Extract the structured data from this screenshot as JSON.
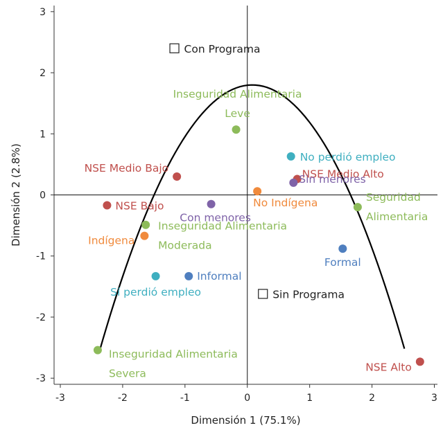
{
  "chart_data": {
    "type": "scatter",
    "xlabel": "Dimensión 1 (75.1%)",
    "ylabel": "Dimensión 2 (2.8%)",
    "xlim": [
      -3.1,
      3.05
    ],
    "ylim": [
      -3.1,
      3.1
    ],
    "xticks": [
      -3,
      -2,
      -1,
      0,
      1,
      2,
      3
    ],
    "yticks": [
      -3,
      -2,
      -1,
      0,
      1,
      2,
      3
    ],
    "xtick_labels": [
      "-3",
      "-2",
      "-1",
      "0",
      "1",
      "2",
      "3"
    ],
    "ytick_labels": [
      "-3",
      "-2",
      "-1",
      "0",
      "1",
      "2",
      "3"
    ],
    "grid": false,
    "reference_lines": {
      "x": 0,
      "y": 0
    },
    "colors": {
      "nse": "#c0504d",
      "food": "#8dbb5a",
      "indigenous": "#f08a3c",
      "employment_loss": "#3fafc0",
      "minors": "#7f63a8",
      "work": "#4f7fbf",
      "program": "#222222",
      "curve": "#000000"
    },
    "points": [
      {
        "group": "nse",
        "x": -2.25,
        "y": -0.17,
        "label": "NSE Bajo",
        "anchor": "start"
      },
      {
        "group": "nse",
        "x": -1.13,
        "y": 0.3,
        "label": "NSE Medio Bajo",
        "anchor": "end"
      },
      {
        "group": "nse",
        "x": 0.8,
        "y": 0.26,
        "label": "NSE Medio Alto",
        "anchor": "start"
      },
      {
        "group": "nse",
        "x": 2.77,
        "y": -2.73,
        "label": "NSE Alto",
        "anchor": "end"
      },
      {
        "group": "food",
        "x": -0.18,
        "y": 1.07,
        "label": "Inseguridad Alimentaria\nLeve",
        "anchor": "middle"
      },
      {
        "group": "food",
        "x": -1.63,
        "y": -0.49,
        "label": "Inseguridad Alimentaria\nModerada",
        "anchor": "start"
      },
      {
        "group": "food",
        "x": -2.4,
        "y": -2.54,
        "label": "Inseguridad Alimentaria\nSevera",
        "anchor": "start"
      },
      {
        "group": "food",
        "x": 1.77,
        "y": -0.2,
        "label": "Seguridad\nAlimentaria",
        "anchor": "start"
      },
      {
        "group": "indigenous",
        "x": -1.65,
        "y": -0.67,
        "label": "Indígena",
        "anchor": "end"
      },
      {
        "group": "indigenous",
        "x": 0.16,
        "y": 0.06,
        "label": "No Indígena",
        "anchor": "start"
      },
      {
        "group": "employment_loss",
        "x": -1.47,
        "y": -1.33,
        "label": "Sí perdió empleo",
        "anchor": "middle"
      },
      {
        "group": "employment_loss",
        "x": 0.7,
        "y": 0.63,
        "label": "No perdió empleo",
        "anchor": "start"
      },
      {
        "group": "minors",
        "x": -0.58,
        "y": -0.15,
        "label": "Con menores",
        "anchor": "middle"
      },
      {
        "group": "minors",
        "x": 0.74,
        "y": 0.2,
        "label": "Sin menores",
        "anchor": "start"
      },
      {
        "group": "work",
        "x": -0.94,
        "y": -1.33,
        "label": "Informal",
        "anchor": "start"
      },
      {
        "group": "work",
        "x": 1.53,
        "y": -0.88,
        "label": "Formal",
        "anchor": "middle"
      }
    ],
    "program_markers": [
      {
        "x": -1.17,
        "y": 2.4,
        "label": "Con Programa"
      },
      {
        "x": 0.25,
        "y": -1.62,
        "label": "Sin Programa"
      }
    ],
    "curve": {
      "type": "parabola",
      "x_from": -2.38,
      "x_to": 2.52,
      "vertex_x": 0.08,
      "vertex_y": 1.8,
      "a": -0.725
    }
  }
}
